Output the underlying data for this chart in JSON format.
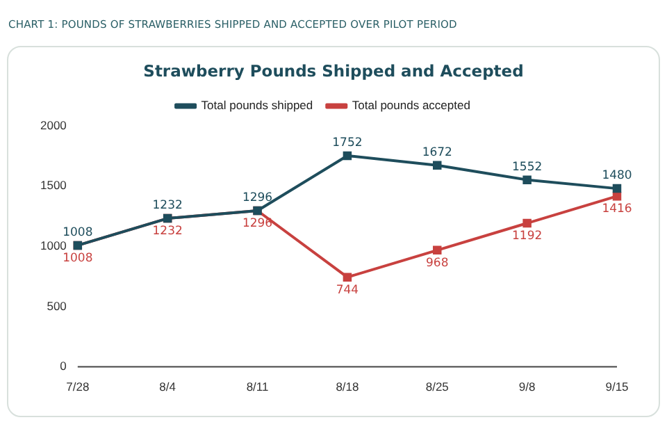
{
  "chart_data": {
    "type": "line",
    "title": "CHART 1: POUNDS OF STRAWBERRIES SHIPPED AND ACCEPTED OVER PILOT PERIOD",
    "subtitle": "Strawberry Pounds Shipped and Accepted",
    "categories": [
      "7/28",
      "8/4",
      "8/11",
      "8/18",
      "8/25",
      "9/8",
      "9/15"
    ],
    "series": [
      {
        "name": "Total pounds shipped",
        "color": "#1e4d5c",
        "values": [
          1008,
          1232,
          1296,
          1752,
          1672,
          1552,
          1480
        ]
      },
      {
        "name": "Total pounds accepted",
        "color": "#c8413f",
        "values": [
          1008,
          1232,
          1296,
          744,
          968,
          1192,
          1416
        ]
      }
    ],
    "ylim": [
      0,
      2000
    ],
    "yticks": [
      0,
      500,
      1000,
      1500,
      2000
    ],
    "grid": false,
    "legend": "top",
    "marker": "square",
    "line_style": "solid",
    "data_labels": true
  }
}
